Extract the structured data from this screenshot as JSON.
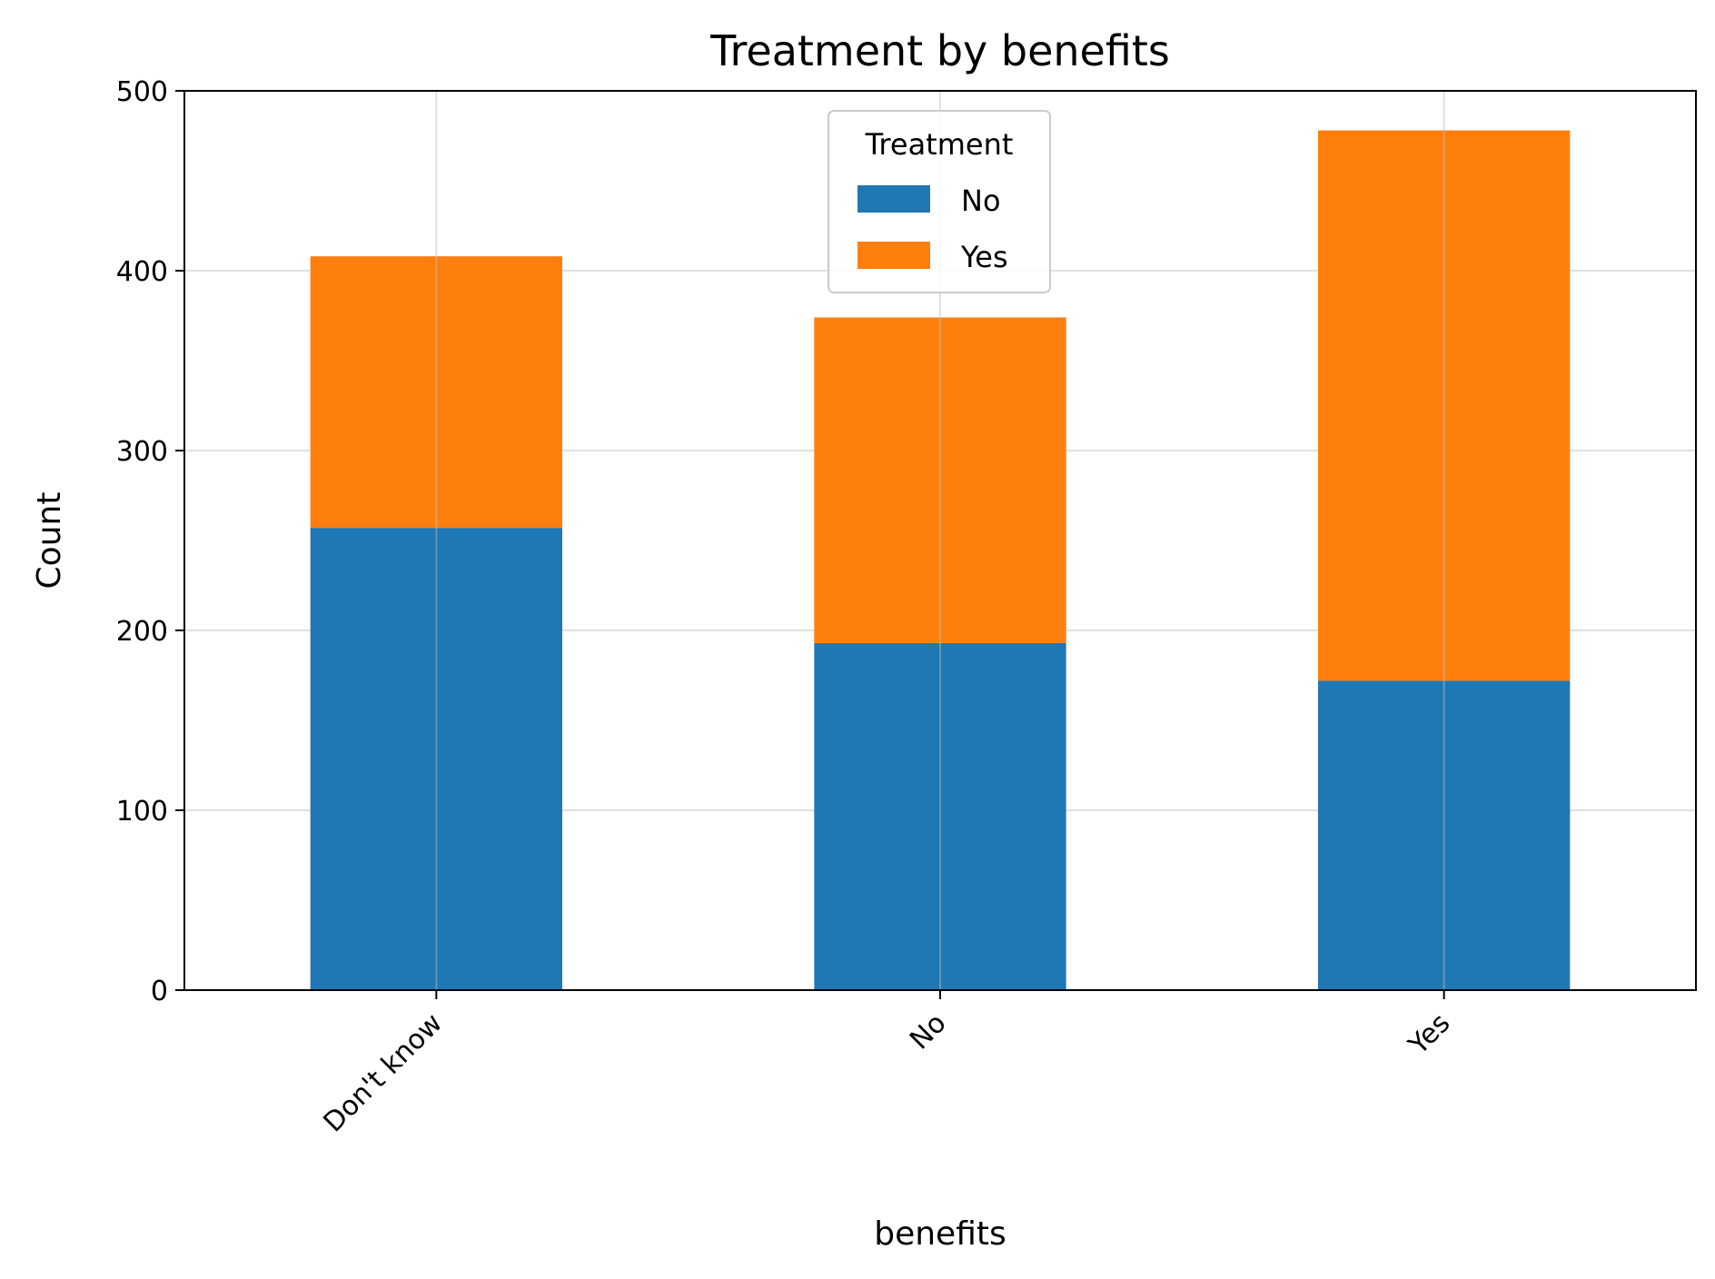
{
  "chart_data": {
    "type": "bar",
    "stacked": true,
    "title": "Treatment by benefits",
    "xlabel": "benefits",
    "ylabel": "Count",
    "categories": [
      "Don't know",
      "No",
      "Yes"
    ],
    "series": [
      {
        "name": "No",
        "values": [
          257,
          193,
          172
        ],
        "color": "#1f77b4"
      },
      {
        "name": "Yes",
        "values": [
          151,
          181,
          306
        ],
        "color": "#ff7f0e"
      }
    ],
    "ylim": [
      0,
      500
    ],
    "yticks": [
      0,
      100,
      200,
      300,
      400,
      500
    ],
    "grid": true,
    "legend": {
      "title": "Treatment",
      "placement": "top-center"
    }
  }
}
